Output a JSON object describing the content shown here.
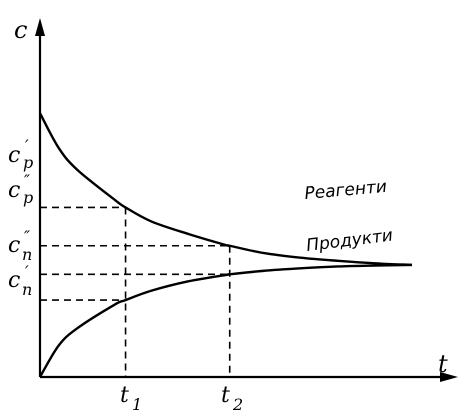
{
  "chart_data": {
    "type": "line",
    "xlabel": "t",
    "ylabel": "c",
    "grid": false,
    "legend": "labels on curves",
    "x_range": [
      0,
      10
    ],
    "y_range": [
      0,
      10
    ],
    "series": [
      {
        "name": "Реагенти",
        "x": [
          0,
          0.5,
          1,
          2,
          2.3,
          3,
          4,
          5,
          5.1,
          6,
          7,
          8,
          9,
          10
        ],
        "y": [
          8.4,
          7.3,
          6.6,
          5.65,
          5.4,
          4.95,
          4.55,
          4.2,
          4.18,
          3.95,
          3.8,
          3.7,
          3.62,
          3.57
        ]
      },
      {
        "name": "Продукти",
        "x": [
          0,
          0.5,
          1,
          2,
          2.3,
          3,
          4,
          5,
          5.1,
          6,
          7,
          8,
          9,
          10
        ],
        "y": [
          0,
          1.0,
          1.55,
          2.3,
          2.45,
          2.75,
          3.05,
          3.25,
          3.27,
          3.38,
          3.46,
          3.52,
          3.55,
          3.57
        ]
      }
    ],
    "annotations": {
      "t1": {
        "label": "t",
        "sub": "1",
        "x": 2.3
      },
      "t2": {
        "label": "t",
        "sub": "2",
        "x": 5.1
      },
      "levels": [
        {
          "label": "c",
          "sub": "p",
          "prime": "′",
          "y": 5.4
        },
        {
          "label": "c",
          "sub": "p",
          "prime": "″",
          "y": 4.18
        },
        {
          "label": "c",
          "sub": "п",
          "prime": "″",
          "y": 3.27
        },
        {
          "label": "c",
          "sub": "п",
          "prime": "′",
          "y": 2.45
        }
      ]
    }
  }
}
